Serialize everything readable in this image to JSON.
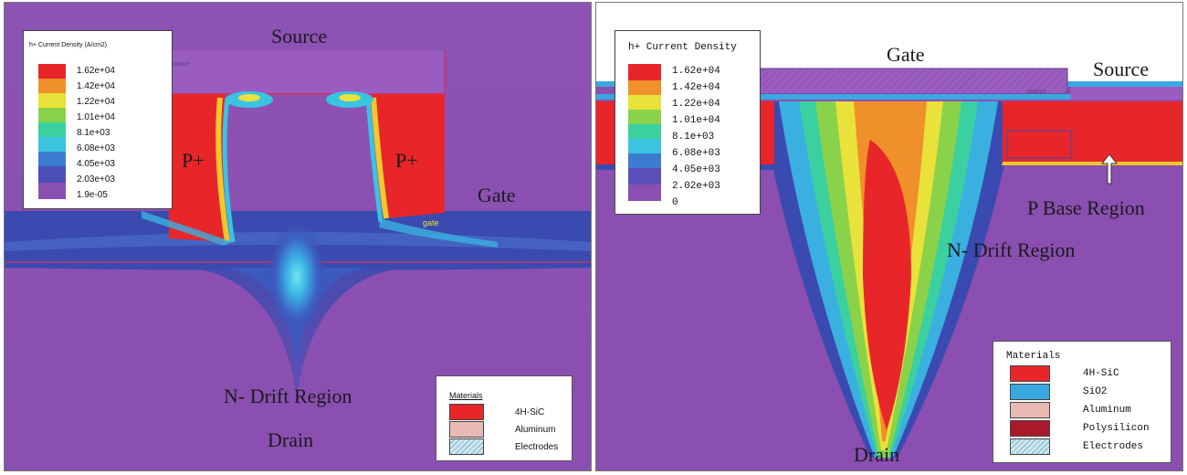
{
  "left": {
    "labels": {
      "source": "Source",
      "p_plus_left": "P+",
      "p_plus_right": "P+",
      "gate": "Gate",
      "gate_small": "gate",
      "source_small": "source",
      "drift": "N- Drift Region",
      "drain": "Drain"
    },
    "legend": {
      "title": "h+ Current Density (A/cm2)",
      "ticks": [
        "1.62e+04",
        "1.42e+04",
        "1.22e+04",
        "1.01e+04",
        "8.1e+03",
        "6.08e+03",
        "4.05e+03",
        "2.03e+03",
        "1.9e-05"
      ]
    },
    "materials": {
      "title": "Materials",
      "items": [
        {
          "name": "4H-SiC",
          "color": "#e8262a"
        },
        {
          "name": "Aluminum",
          "color": "#e9b9b4"
        },
        {
          "name": "Electrodes",
          "color": "#cfe6ee"
        }
      ]
    }
  },
  "right": {
    "labels": {
      "gate": "Gate",
      "source": "Source",
      "source_small": "source",
      "p_base": "P Base Region",
      "drift": "N- Drift Region",
      "drain": "Drain"
    },
    "legend": {
      "title": "h+ Current Density",
      "ticks": [
        "1.62e+04",
        "1.42e+04",
        "1.22e+04",
        "1.01e+04",
        "8.1e+03",
        "6.08e+03",
        "4.05e+03",
        "2.02e+03",
        "0"
      ]
    },
    "materials": {
      "title": "Materials",
      "items": [
        {
          "name": "4H-SiC",
          "color": "#e8262a"
        },
        {
          "name": "SiO2",
          "color": "#3aa8e0"
        },
        {
          "name": "Aluminum",
          "color": "#e9b9b4"
        },
        {
          "name": "Polysilicon",
          "color": "#a8192a"
        },
        {
          "name": "Electrodes",
          "color": "#cfe6ee"
        }
      ]
    }
  },
  "colors": {
    "purple": "#8a4fb0",
    "blue_band": "#3b4fb0",
    "red": "#e8262a",
    "orange": "#f0902a",
    "yellow": "#e8e23a",
    "green": "#8ad24a",
    "cyan": "#3ac4e0"
  }
}
